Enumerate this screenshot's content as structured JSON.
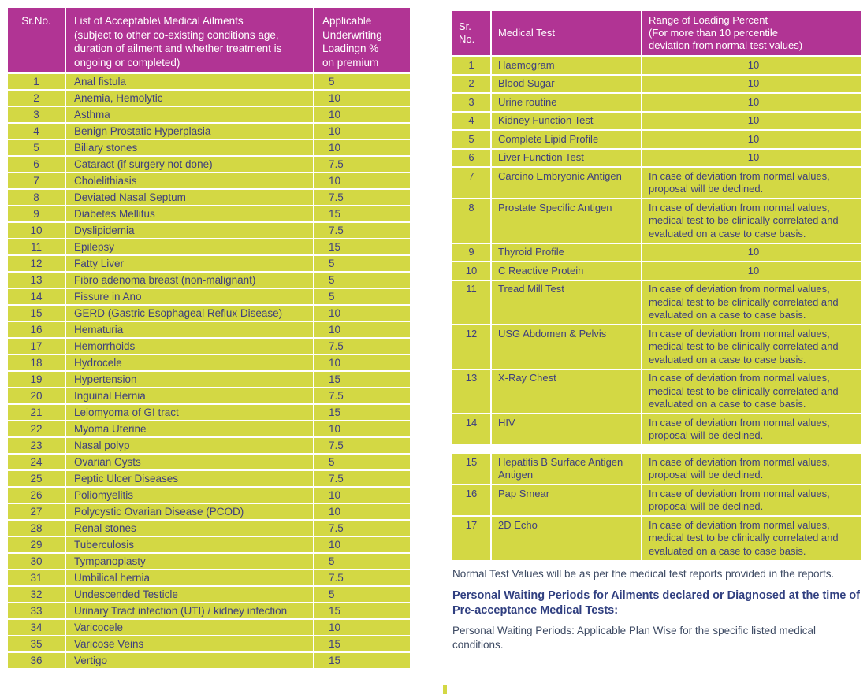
{
  "colors": {
    "header_bg": "#b13494",
    "header_text": "#ffffff",
    "row_bg": "#d3d844",
    "cell_text": "#3f3f7e",
    "note_text": "#3d4a63",
    "heading_text": "#303f80",
    "grid_lines": "#ffffff"
  },
  "left_table": {
    "headers": {
      "sr": "Sr.No.",
      "ailment": "List of Acceptable\\ Medical Ailments\n(subject to other co-existing conditions age,\nduration of ailment and whether treatment is\nongoing or completed)",
      "loading": "Applicable\nUnderwriting\nLoadingn %\non premium"
    },
    "rows": [
      {
        "n": "1",
        "name": "Anal fistula",
        "v": "5"
      },
      {
        "n": "2",
        "name": "Anemia, Hemolytic",
        "v": "10"
      },
      {
        "n": "3",
        "name": "Asthma",
        "v": "10"
      },
      {
        "n": "4",
        "name": "Benign Prostatic Hyperplasia",
        "v": "10"
      },
      {
        "n": "5",
        "name": "Biliary stones",
        "v": "10"
      },
      {
        "n": "6",
        "name": "Cataract (if surgery not done)",
        "v": "7.5"
      },
      {
        "n": "7",
        "name": "Cholelithiasis",
        "v": "10"
      },
      {
        "n": "8",
        "name": "Deviated Nasal Septum",
        "v": "7.5"
      },
      {
        "n": "9",
        "name": "Diabetes Mellitus",
        "v": "15"
      },
      {
        "n": "10",
        "name": "Dyslipidemia",
        "v": "7.5"
      },
      {
        "n": "11",
        "name": "Epilepsy",
        "v": "15"
      },
      {
        "n": "12",
        "name": "Fatty Liver",
        "v": "5"
      },
      {
        "n": "13",
        "name": "Fibro adenoma breast (non-malignant)",
        "v": "5"
      },
      {
        "n": "14",
        "name": "Fissure in Ano",
        "v": "5"
      },
      {
        "n": "15",
        "name": "GERD (Gastric Esophageal Reflux Disease)",
        "v": "10"
      },
      {
        "n": "16",
        "name": "Hematuria",
        "v": "10"
      },
      {
        "n": "17",
        "name": "Hemorrhoids",
        "v": "7.5"
      },
      {
        "n": "18",
        "name": "Hydrocele",
        "v": "10"
      },
      {
        "n": "19",
        "name": "Hypertension",
        "v": "15"
      },
      {
        "n": "20",
        "name": "Inguinal Hernia",
        "v": "7.5"
      },
      {
        "n": "21",
        "name": "Leiomyoma of GI tract",
        "v": "15"
      },
      {
        "n": "22",
        "name": "Myoma Uterine",
        "v": "10"
      },
      {
        "n": "23",
        "name": "Nasal polyp",
        "v": "7.5"
      },
      {
        "n": "24",
        "name": "Ovarian Cysts",
        "v": "5"
      },
      {
        "n": "25",
        "name": "Peptic Ulcer Diseases",
        "v": "7.5"
      },
      {
        "n": "26",
        "name": "Poliomyelitis",
        "v": "10"
      },
      {
        "n": "27",
        "name": "Polycystic Ovarian Disease (PCOD)",
        "v": "10"
      },
      {
        "n": "28",
        "name": "Renal stones",
        "v": "7.5"
      },
      {
        "n": "29",
        "name": "Tuberculosis",
        "v": "10"
      },
      {
        "n": "30",
        "name": "Tympanoplasty",
        "v": "5"
      },
      {
        "n": "31",
        "name": "Umbilical hernia",
        "v": "7.5"
      },
      {
        "n": "32",
        "name": "Undescended Testicle",
        "v": "5"
      },
      {
        "n": "33",
        "name": "Urinary Tract infection (UTI) / kidney infection",
        "v": "15"
      },
      {
        "n": "34",
        "name": "Varicocele",
        "v": "10"
      },
      {
        "n": "35",
        "name": "Varicose Veins",
        "v": "15"
      },
      {
        "n": "36",
        "name": "Vertigo",
        "v": "15"
      }
    ]
  },
  "right_table": {
    "headers": {
      "sr": "Sr.\nNo.",
      "test": "Medical Test",
      "range": "Range of Loading Percent\n(For more than 10 percentile\ndeviation from normal test values)"
    },
    "rows": [
      {
        "n": "1",
        "test": "Haemogram",
        "range": "10"
      },
      {
        "n": "2",
        "test": "Blood Sugar",
        "range": "10"
      },
      {
        "n": "3",
        "test": "Urine routine",
        "range": "10"
      },
      {
        "n": "4",
        "test": "Kidney Function Test",
        "range": "10"
      },
      {
        "n": "5",
        "test": "Complete Lipid Profile",
        "range": "10"
      },
      {
        "n": "6",
        "test": "Liver Function Test",
        "range": "10"
      },
      {
        "n": "7",
        "test": "Carcino Embryonic Antigen",
        "range": "In case of deviation from normal values, proposal will be declined."
      },
      {
        "n": "8",
        "test": "Prostate Specific Antigen",
        "range": "In case of deviation from normal values, medical test to be clinically correlated and evaluated on a case to case basis."
      },
      {
        "n": "9",
        "test": "Thyroid Profile",
        "range": "10"
      },
      {
        "n": "10",
        "test": "C Reactive Protein",
        "range": "10"
      },
      {
        "n": "11",
        "test": "Tread Mill Test",
        "range": "In case of deviation from normal values, medical test to be clinically correlated and evaluated on a case to case basis."
      },
      {
        "n": "12",
        "test": "USG Abdomen & Pelvis",
        "range": "In case of deviation from normal values, medical test to be clinically correlated and evaluated on a case to case basis."
      },
      {
        "n": "13",
        "test": "X-Ray Chest",
        "range": "In case of deviation from normal values, medical test to be clinically correlated and evaluated on a case to case basis."
      },
      {
        "n": "14",
        "test": "HIV",
        "range": "In case of deviation from normal values, proposal will be declined."
      }
    ],
    "rows_continued": [
      {
        "n": "15",
        "test": "Hepatitis B Surface Antigen Antigen",
        "range": "In case of deviation from normal values, proposal will be declined."
      },
      {
        "n": "16",
        "test": "Pap Smear",
        "range": "In case of deviation from normal values, proposal will be declined."
      },
      {
        "n": "17",
        "test": "2D Echo",
        "range": "In case of deviation from normal values, medical test to be clinically correlated and evaluated on a case to case basis."
      }
    ]
  },
  "notes": {
    "normal_values": "Normal Test Values will be as per the medical test reports provided in the reports.",
    "waiting_heading": "Personal Waiting Periods for Ailments declared or Diagnosed at the time of Pre-acceptance Medical Tests:",
    "waiting_text": "Personal Waiting Periods: Applicable Plan Wise for the specific listed medical conditions."
  }
}
